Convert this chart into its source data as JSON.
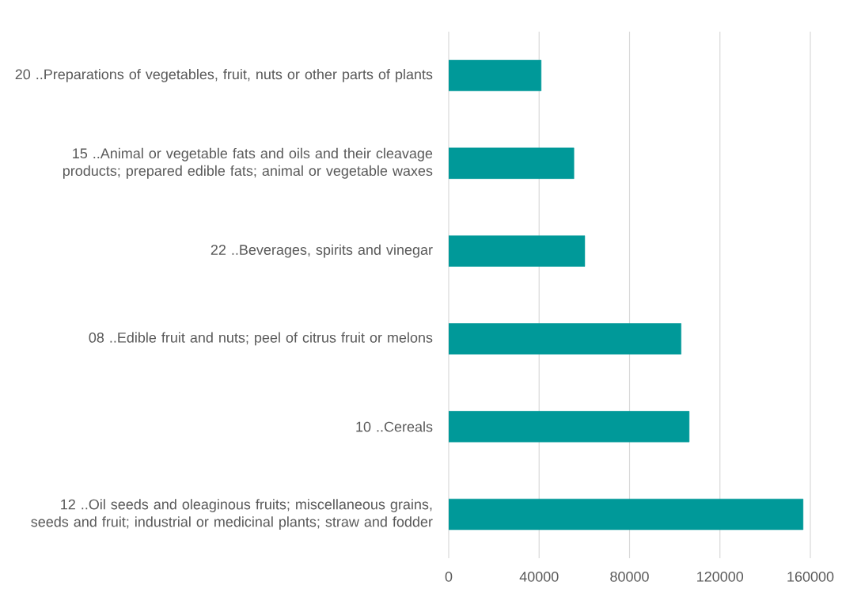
{
  "chart_data": {
    "type": "bar",
    "orientation": "horizontal",
    "categories": [
      "20  ..Preparations of vegetables, fruit, nuts or other parts of plants",
      "15  ..Animal or vegetable fats and oils and their cleavage products; prepared edible fats; animal or vegetable waxes",
      "22  ..Beverages, spirits and vinegar",
      "08  ..Edible fruit and nuts; peel of citrus fruit or melons",
      "10  ..Cereals",
      "12  ..Oil seeds and oleaginous fruits; miscellaneous grains, seeds and fruit; industrial or medicinal plants; straw and fodder"
    ],
    "values": [
      40900,
      55400,
      60200,
      102800,
      106400,
      156800
    ],
    "color": "#009999",
    "xlim": [
      0,
      160000
    ],
    "xticks": [
      0,
      40000,
      80000,
      120000,
      160000
    ],
    "grid": "x"
  }
}
